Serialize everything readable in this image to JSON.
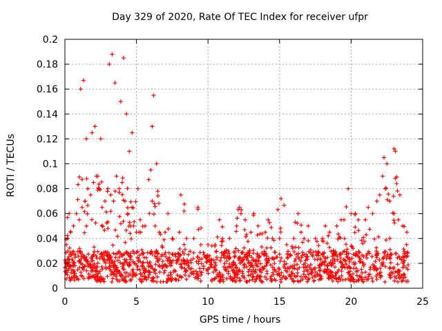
{
  "chart_data": {
    "type": "scatter",
    "title": "Day 329 of 2020, Rate Of TEC Index for receiver ufpr",
    "xlabel": "GPS time / hours",
    "ylabel": "ROTI / TECUs",
    "xlim": [
      0,
      25
    ],
    "ylim": [
      0,
      0.2
    ],
    "xticks": [
      "0",
      "5",
      "10",
      "15",
      "20",
      "25"
    ],
    "yticks": [
      "0",
      "0.02",
      "0.04",
      "0.06",
      "0.08",
      "0.1",
      "0.12",
      "0.14",
      "0.16",
      "0.18",
      "0.2"
    ],
    "grid": true,
    "marker": "+",
    "color": "#ff0000",
    "series": [
      {
        "x": [
          0.1,
          0.2,
          0.4,
          0.6,
          0.8,
          1.0,
          1.2,
          1.4,
          1.6,
          1.8,
          2.0,
          2.2,
          2.4,
          2.6,
          2.8,
          3.0,
          3.2,
          3.4,
          3.6,
          3.8,
          4.0,
          4.2,
          4.4,
          4.6,
          4.8,
          5.0,
          5.3,
          5.6,
          5.9,
          6.1,
          6.3,
          6.6,
          7.0,
          7.5,
          8.0,
          8.5,
          9.0,
          9.5,
          10.0,
          10.5,
          11.0,
          11.5,
          12.0,
          12.3,
          12.6,
          13.0,
          13.5,
          14.0,
          14.5,
          15.0,
          15.5,
          16.0,
          16.5,
          17.0,
          17.5,
          18.0,
          18.5,
          19.0,
          19.5,
          20.0,
          20.5,
          21.0,
          21.5,
          22.0,
          22.2,
          22.4,
          22.7,
          23.0,
          23.3,
          23.6,
          23.9,
          0.3,
          1.1,
          1.3,
          2.1,
          2.5,
          3.1,
          3.3,
          3.5,
          3.9,
          4.1,
          4.3,
          6.2,
          6.1,
          8.1,
          15.1,
          19.8,
          22.3,
          23.0,
          23.1,
          1.5,
          1.9,
          2.3,
          4.5,
          4.7,
          5.1,
          6.0,
          6.4,
          7.2,
          9.3,
          10.8,
          12.2,
          13.2,
          14.2,
          16.3,
          18.2,
          19.3,
          20.3,
          21.2,
          21.8,
          22.5,
          23.4
        ],
        "y": [
          0.035,
          0.04,
          0.045,
          0.05,
          0.06,
          0.055,
          0.065,
          0.07,
          0.08,
          0.075,
          0.085,
          0.09,
          0.08,
          0.065,
          0.07,
          0.08,
          0.075,
          0.07,
          0.09,
          0.08,
          0.085,
          0.07,
          0.06,
          0.05,
          0.05,
          0.045,
          0.045,
          0.05,
          0.06,
          0.07,
          0.05,
          0.045,
          0.045,
          0.04,
          0.045,
          0.04,
          0.04,
          0.035,
          0.035,
          0.035,
          0.04,
          0.04,
          0.05,
          0.06,
          0.055,
          0.045,
          0.05,
          0.045,
          0.04,
          0.04,
          0.035,
          0.04,
          0.045,
          0.05,
          0.04,
          0.04,
          0.045,
          0.05,
          0.055,
          0.06,
          0.055,
          0.055,
          0.06,
          0.075,
          0.09,
          0.08,
          0.07,
          0.06,
          0.055,
          0.05,
          0.045,
          0.06,
          0.16,
          0.167,
          0.13,
          0.12,
          0.18,
          0.188,
          0.165,
          0.15,
          0.185,
          0.14,
          0.155,
          0.13,
          0.075,
          0.072,
          0.08,
          0.105,
          0.112,
          0.11,
          0.12,
          0.125,
          0.09,
          0.11,
          0.125,
          0.08,
          0.095,
          0.1,
          0.06,
          0.065,
          0.055,
          0.065,
          0.06,
          0.055,
          0.06,
          0.05,
          0.055,
          0.06,
          0.065,
          0.07,
          0.1,
          0.075
        ],
        "floor": [
          0.005,
          0.03
        ]
      }
    ]
  }
}
